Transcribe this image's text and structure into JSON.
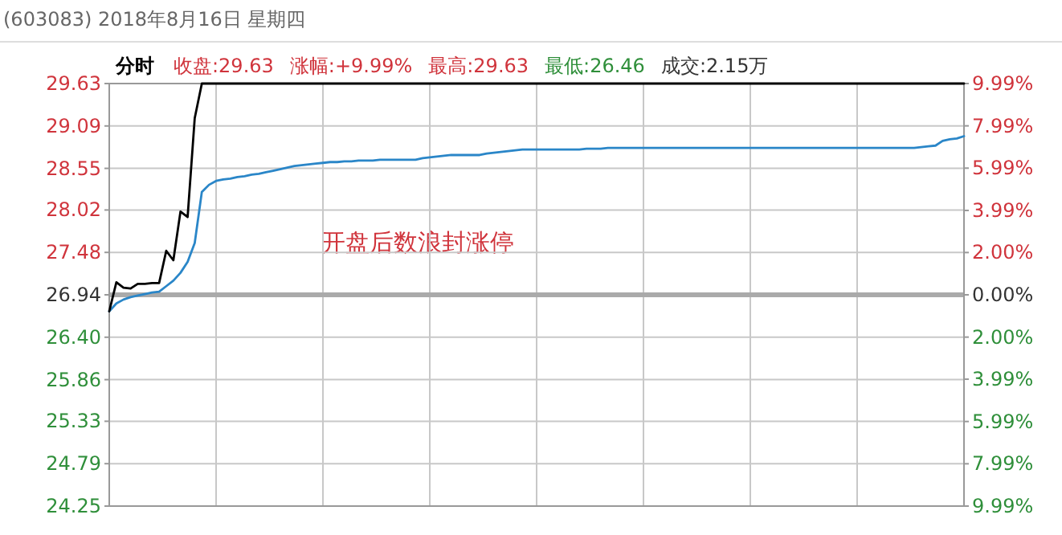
{
  "chart_data": {
    "type": "line",
    "title": "(603083) 2018年8月16日 星期四",
    "subtitle": "分时",
    "annotations": [
      "收盘:29.63",
      "涨幅:+9.99%",
      "最高:29.63",
      "最低:26.46",
      "成交:2.15万",
      "开盘后数浪封涨停"
    ],
    "categories": [
      null,
      null,
      null,
      null,
      null,
      null,
      null,
      null,
      null,
      null,
      null,
      null,
      null,
      null,
      null,
      null,
      null,
      null,
      null,
      null,
      null,
      null,
      null,
      null,
      null,
      null,
      null,
      null,
      null,
      null,
      null,
      null,
      null,
      null,
      null,
      null,
      null,
      null,
      null,
      null,
      null,
      null,
      null,
      null,
      null,
      null,
      null,
      null,
      null,
      null,
      null,
      null,
      null,
      null,
      null,
      null,
      null,
      null,
      null,
      null,
      null,
      null,
      null,
      null,
      null,
      null,
      null,
      null,
      null,
      null,
      null,
      null,
      null,
      null,
      null,
      null,
      null,
      null,
      null,
      null,
      null,
      null,
      null,
      null,
      null,
      null,
      null,
      null,
      null,
      null,
      null,
      null,
      null,
      null,
      null,
      null,
      null,
      null,
      null,
      null,
      null,
      null,
      null,
      null,
      null,
      null,
      null,
      null,
      null,
      null,
      null,
      null,
      null,
      null,
      null,
      null,
      null,
      null,
      null,
      null,
      null
    ],
    "ylim": [
      24.25,
      29.63
    ],
    "yticks": [
      {
        "value": 24.25,
        "label": "24.25"
      },
      {
        "value": 24.79,
        "label": "24.79"
      },
      {
        "value": 25.33,
        "label": "25.33"
      },
      {
        "value": 25.86,
        "label": "25.86"
      },
      {
        "value": 26.4,
        "label": "26.40"
      },
      {
        "value": 26.94,
        "label": "26.94"
      },
      {
        "value": 27.48,
        "label": "27.48"
      },
      {
        "value": 28.02,
        "label": "28.02"
      },
      {
        "value": 28.55,
        "label": "28.55"
      },
      {
        "value": 29.09,
        "label": "29.09"
      },
      {
        "value": 29.63,
        "label": "29.63"
      }
    ],
    "y2lim": [
      -9.99,
      9.99
    ],
    "y2ticks": [
      {
        "value": -9.99,
        "label": "9.99%"
      },
      {
        "value": -7.99,
        "label": "7.99%"
      },
      {
        "value": -5.99,
        "label": "5.99%"
      },
      {
        "value": -3.99,
        "label": "3.99%"
      },
      {
        "value": -2.0,
        "label": "2.00%"
      },
      {
        "value": 0,
        "label": "0.00%"
      },
      {
        "value": 2.0,
        "label": "2.00%"
      },
      {
        "value": 3.99,
        "label": "3.99%"
      },
      {
        "value": 5.99,
        "label": "5.99%"
      },
      {
        "value": 7.99,
        "label": "7.99%"
      },
      {
        "value": 9.99,
        "label": "9.99%"
      }
    ],
    "grid": true,
    "ref_lines": [
      {
        "axis": "y",
        "value": 26.94,
        "color": "#aaaaaa"
      }
    ],
    "series": [
      {
        "color": "#2a86c8",
        "values": [
          26.73,
          26.83,
          26.88,
          26.91,
          26.93,
          26.95,
          26.97,
          26.98,
          27.05,
          27.12,
          27.22,
          27.36,
          27.6,
          28.25,
          28.34,
          28.39,
          28.41,
          28.42,
          28.44,
          28.45,
          28.47,
          28.48,
          28.5,
          28.52,
          28.54,
          28.56,
          28.58,
          28.59,
          28.6,
          28.61,
          28.62,
          28.63,
          28.63,
          28.64,
          28.64,
          28.65,
          28.65,
          28.65,
          28.66,
          28.66,
          28.66,
          28.66,
          28.66,
          28.66,
          28.68,
          28.69,
          28.7,
          28.71,
          28.72,
          28.72,
          28.72,
          28.72,
          28.72,
          28.74,
          28.75,
          28.76,
          28.77,
          28.78,
          28.79,
          28.79,
          28.79,
          28.79,
          28.79,
          28.79,
          28.79,
          28.79,
          28.79,
          28.8,
          28.8,
          28.8,
          28.81,
          28.81,
          28.81,
          28.81,
          28.81,
          28.81,
          28.81,
          28.81,
          28.81,
          28.81,
          28.81,
          28.81,
          28.81,
          28.81,
          28.81,
          28.81,
          28.81,
          28.81,
          28.81,
          28.81,
          28.81,
          28.81,
          28.81,
          28.81,
          28.81,
          28.81,
          28.81,
          28.81,
          28.81,
          28.81,
          28.81,
          28.81,
          28.81,
          28.81,
          28.81,
          28.81,
          28.81,
          28.81,
          28.81,
          28.81,
          28.81,
          28.81,
          28.81,
          28.81,
          28.82,
          28.83,
          28.84,
          28.9,
          28.92,
          28.93,
          28.96
        ]
      },
      {
        "color": "#000000",
        "values": [
          26.73,
          27.1,
          27.03,
          27.02,
          27.08,
          27.08,
          27.09,
          27.09,
          27.5,
          27.38,
          28.0,
          27.93,
          29.19,
          29.63,
          29.63,
          29.63,
          29.63,
          29.63,
          29.63,
          29.63,
          29.63,
          29.63,
          29.63,
          29.63,
          29.63,
          29.63,
          29.63,
          29.63,
          29.63,
          29.63,
          29.63,
          29.63,
          29.63,
          29.63,
          29.63,
          29.63,
          29.63,
          29.63,
          29.63,
          29.63,
          29.63,
          29.63,
          29.63,
          29.63,
          29.63,
          29.63,
          29.63,
          29.63,
          29.63,
          29.63,
          29.63,
          29.63,
          29.63,
          29.63,
          29.63,
          29.63,
          29.63,
          29.63,
          29.63,
          29.63,
          29.63,
          29.63,
          29.63,
          29.63,
          29.63,
          29.63,
          29.63,
          29.63,
          29.63,
          29.63,
          29.63,
          29.63,
          29.63,
          29.63,
          29.63,
          29.63,
          29.63,
          29.63,
          29.63,
          29.63,
          29.63,
          29.63,
          29.63,
          29.63,
          29.63,
          29.63,
          29.63,
          29.63,
          29.63,
          29.63,
          29.63,
          29.63,
          29.63,
          29.63,
          29.63,
          29.63,
          29.63,
          29.63,
          29.63,
          29.63,
          29.63,
          29.63,
          29.63,
          29.63,
          29.63,
          29.63,
          29.63,
          29.63,
          29.63,
          29.63,
          29.63,
          29.63,
          29.63,
          29.63,
          29.63,
          29.63,
          29.63,
          29.63,
          29.63,
          29.63,
          29.63
        ]
      }
    ]
  }
}
